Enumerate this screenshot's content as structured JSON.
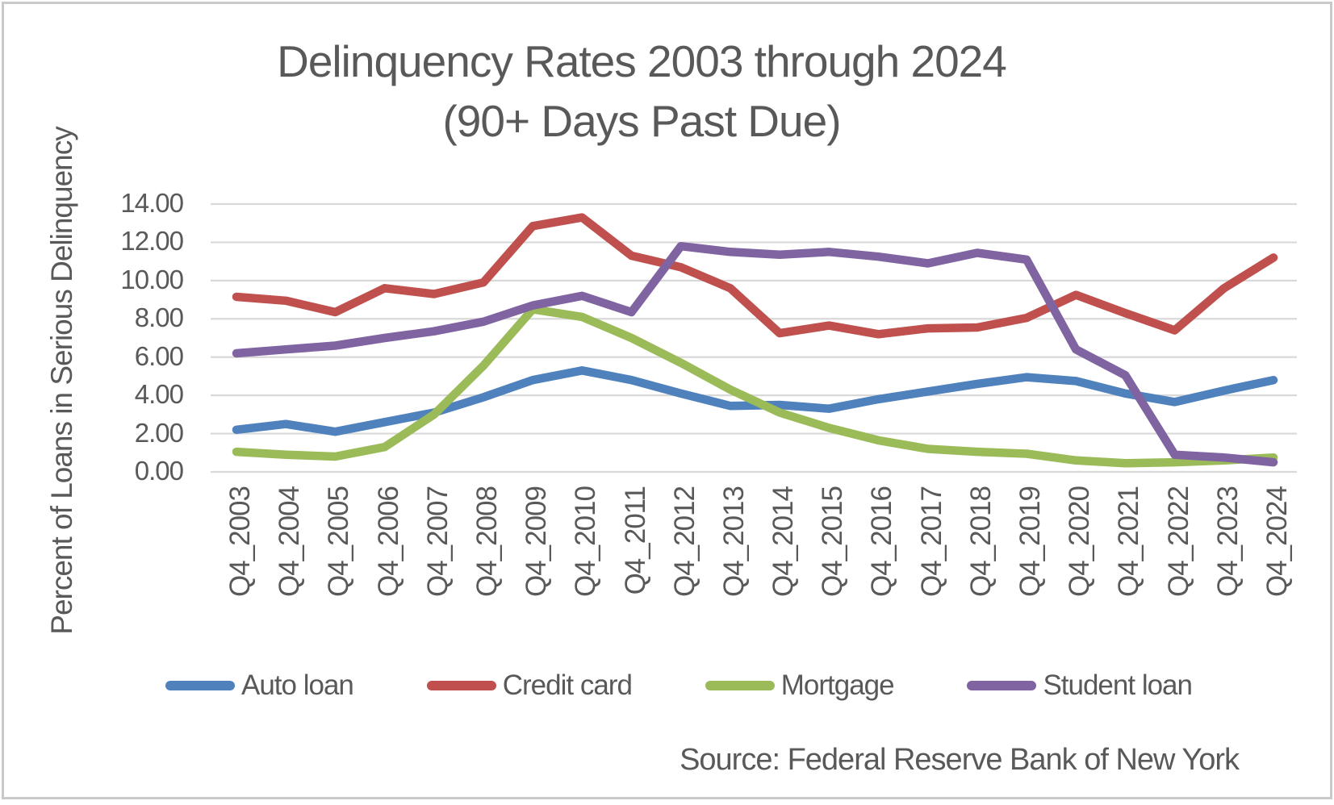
{
  "title": {
    "line1": "Delinquency Rates 2003 through 2024",
    "line2": "(90+ Days Past Due)"
  },
  "y_axis": {
    "title": "Percent of Loans in Serious Delinquency",
    "tick_labels": [
      "14.00",
      "12.00",
      "10.00",
      "8.00",
      "6.00",
      "4.00",
      "2.00",
      "0.00"
    ]
  },
  "x_axis": {
    "tick_labels": [
      "Q4_2003",
      "Q4_2004",
      "Q4_2005",
      "Q4_2006",
      "Q4_2007",
      "Q4_2008",
      "Q4_2009",
      "Q4_2010",
      "Q4_2011",
      "Q4_2012",
      "Q4_2013",
      "Q4_2014",
      "Q4_2015",
      "Q4_2016",
      "Q4_2017",
      "Q4_2018",
      "Q4_2019",
      "Q4_2020",
      "Q4_2021",
      "Q4_2022",
      "Q4_2023",
      "Q4_2024"
    ]
  },
  "legend": [
    {
      "label": "Auto loan",
      "color": "#4F81BD"
    },
    {
      "label": "Credit card",
      "color": "#C0504D"
    },
    {
      "label": "Mortgage",
      "color": "#9BBB59"
    },
    {
      "label": "Student loan",
      "color": "#8064A2"
    }
  ],
  "source": "Source: Federal Reserve Bank of New York",
  "colors": {
    "text": "#595959",
    "gridline": "#D9D9D9",
    "frame_border": "#C9C9C9",
    "auto_loan": "#4F81BD",
    "credit_card": "#C0504D",
    "mortgage": "#9BBB59",
    "student_loan": "#8064A2"
  },
  "chart_data": {
    "type": "line",
    "title": "Delinquency Rates 2003 through 2024 (90+ Days Past Due)",
    "xlabel": "",
    "ylabel": "Percent of Loans in Serious Delinquency",
    "ylim": [
      0,
      14
    ],
    "ytick_step": 2,
    "grid": true,
    "legend_position": "bottom",
    "categories": [
      "Q4_2003",
      "Q4_2004",
      "Q4_2005",
      "Q4_2006",
      "Q4_2007",
      "Q4_2008",
      "Q4_2009",
      "Q4_2010",
      "Q4_2011",
      "Q4_2012",
      "Q4_2013",
      "Q4_2014",
      "Q4_2015",
      "Q4_2016",
      "Q4_2017",
      "Q4_2018",
      "Q4_2019",
      "Q4_2020",
      "Q4_2021",
      "Q4_2022",
      "Q4_2023",
      "Q4_2024"
    ],
    "series": [
      {
        "name": "Auto loan",
        "color": "#4F81BD",
        "values": [
          2.2,
          2.5,
          2.1,
          2.6,
          3.1,
          3.9,
          4.8,
          5.3,
          4.8,
          4.1,
          3.45,
          3.5,
          3.3,
          3.8,
          4.2,
          4.6,
          4.95,
          4.75,
          4.1,
          3.65,
          4.25,
          4.8
        ]
      },
      {
        "name": "Credit card",
        "color": "#C0504D",
        "values": [
          9.15,
          8.95,
          8.35,
          9.6,
          9.3,
          9.9,
          12.85,
          13.3,
          11.3,
          10.7,
          9.6,
          7.25,
          7.65,
          7.2,
          7.5,
          7.55,
          8.05,
          9.25,
          8.3,
          7.4,
          9.6,
          11.2
        ]
      },
      {
        "name": "Mortgage",
        "color": "#9BBB59",
        "values": [
          1.05,
          0.9,
          0.8,
          1.3,
          3.0,
          5.55,
          8.5,
          8.1,
          7.0,
          5.7,
          4.3,
          3.1,
          2.3,
          1.65,
          1.2,
          1.05,
          0.95,
          0.6,
          0.45,
          0.5,
          0.6,
          0.75
        ]
      },
      {
        "name": "Student loan",
        "color": "#8064A2",
        "values": [
          6.2,
          6.4,
          6.6,
          7.0,
          7.35,
          7.85,
          8.7,
          9.2,
          8.35,
          11.8,
          11.5,
          11.35,
          11.5,
          11.25,
          10.9,
          11.45,
          11.1,
          6.4,
          5.05,
          0.9,
          0.75,
          0.5
        ]
      }
    ]
  }
}
